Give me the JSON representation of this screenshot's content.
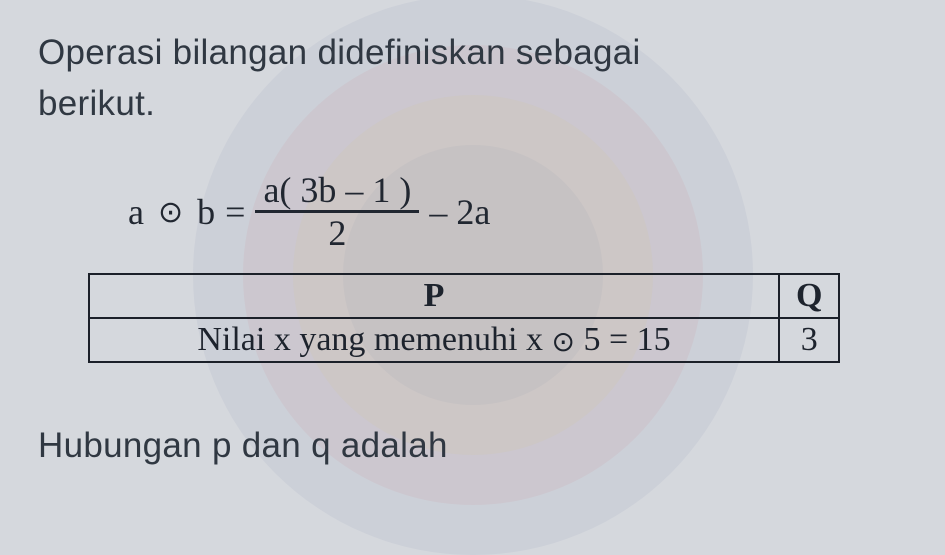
{
  "intro": {
    "line1": "Operasi bilangan didefiniskan sebagai",
    "line2": "berikut."
  },
  "equation": {
    "lhs_a": "a",
    "operator_symbol": "⊙",
    "lhs_b": "b",
    "eq": "=",
    "numerator": "a( 3b – 1 )",
    "denominator": "2",
    "trailing": " – 2a"
  },
  "table": {
    "header_p": "P",
    "header_q": "Q",
    "row_text_prefix": "Nilai x yang memenuhi x ",
    "row_op": "⊙",
    "row_text_suffix": " 5 = 15",
    "row_q_value": "3"
  },
  "footer": "Hubungan p dan q adalah",
  "colors": {
    "background": "#d5d8dd",
    "text": "#303842",
    "border": "#1b2029"
  }
}
